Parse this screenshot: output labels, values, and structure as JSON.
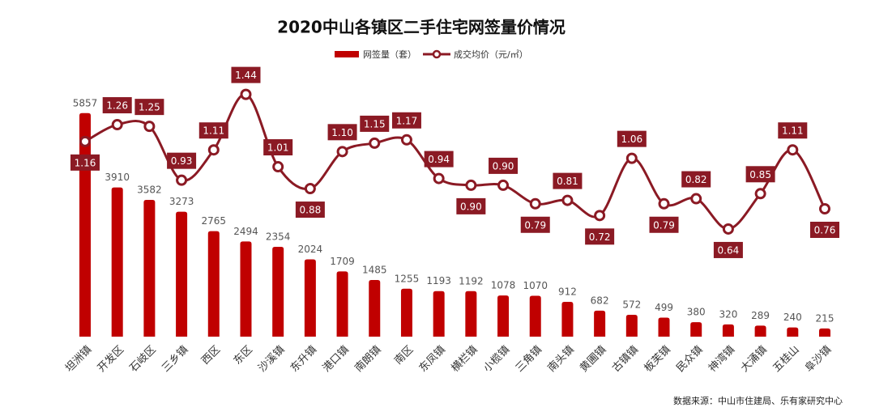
{
  "chart_data": {
    "type": "bar-line",
    "title": "2020中山各镇区二手住宅网签量价情况",
    "categories": [
      "坦洲镇",
      "开发区",
      "石岐区",
      "三乡镇",
      "西区",
      "东区",
      "沙溪镇",
      "东升镇",
      "港口镇",
      "南朗镇",
      "南区",
      "东凤镇",
      "横栏镇",
      "小榄镇",
      "三角镇",
      "南头镇",
      "黄圃镇",
      "古镇镇",
      "板芙镇",
      "民众镇",
      "神湾镇",
      "大涌镇",
      "五桂山",
      "阜沙镇"
    ],
    "series": [
      {
        "name": "网签量（套）",
        "color": "#c00000",
        "type": "bar",
        "values": [
          5857,
          3910,
          3582,
          3273,
          2765,
          2494,
          2354,
          2024,
          1709,
          1485,
          1255,
          1193,
          1192,
          1078,
          1070,
          912,
          682,
          572,
          499,
          380,
          320,
          289,
          240,
          215
        ]
      },
      {
        "name": "成交均价（元/㎡）",
        "color": "#8b1a24",
        "type": "line",
        "axis": "y2",
        "values": [
          1.16,
          1.26,
          1.25,
          0.93,
          1.11,
          1.44,
          1.01,
          0.88,
          1.1,
          1.15,
          1.17,
          0.94,
          0.9,
          0.9,
          0.79,
          0.81,
          0.72,
          1.06,
          0.79,
          0.82,
          0.64,
          0.85,
          1.11,
          0.76
        ],
        "value_labels": [
          "1.16",
          "1.26",
          "1.25",
          "0.93",
          "1.11",
          "1.44",
          "1.01",
          "0.88",
          "1.10",
          "1.15",
          "1.17",
          "0.94",
          "0.90",
          "0.90",
          "0.79",
          "0.81",
          "0.72",
          "1.06",
          "0.79",
          "0.82",
          "0.64",
          "0.85",
          "1.11",
          "0.76"
        ]
      }
    ],
    "ylim": [
      0,
      6700
    ],
    "y2lim": [
      0,
      1.52
    ],
    "source": "数据来源：中山市住建局、乐有家研究中心"
  }
}
